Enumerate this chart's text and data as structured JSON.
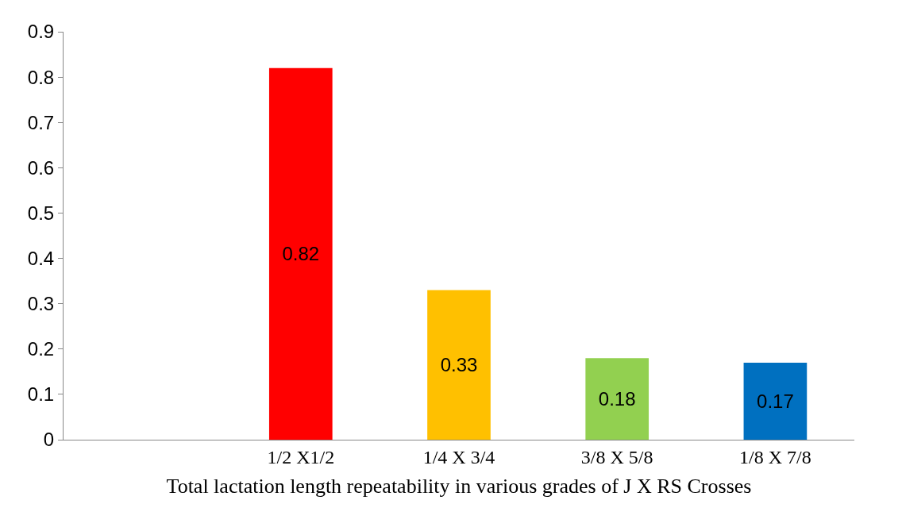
{
  "chart_data": {
    "type": "bar",
    "xlabel": "Total lactation length repeatability in various grades of J X RS Crosses",
    "categories": [
      "1/2 X1/2",
      "1/4 X 3/4",
      "3/8 X 5/8",
      "1/8 X 7/8"
    ],
    "values": [
      0.82,
      0.33,
      0.18,
      0.17
    ],
    "colors": [
      "#ff0000",
      "#ffc000",
      "#92d050",
      "#0070c0"
    ],
    "ylim": [
      0,
      0.9
    ],
    "yticks": [
      0,
      0.1,
      0.2,
      0.3,
      0.4,
      0.5,
      0.6,
      0.7,
      0.8,
      0.9
    ],
    "data_labels": true
  }
}
